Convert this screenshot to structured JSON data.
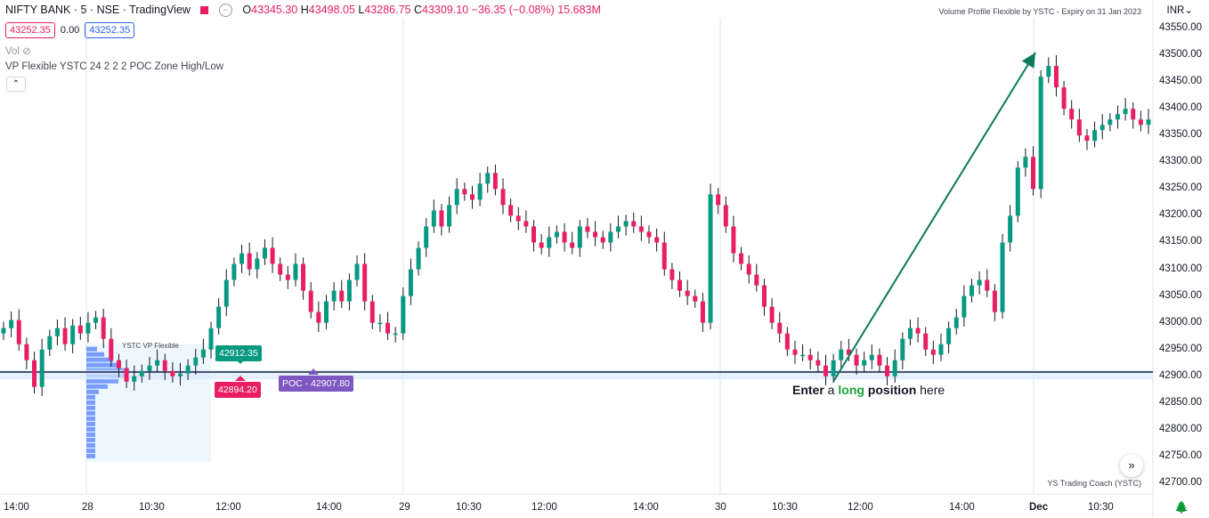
{
  "header": {
    "symbol": "NIFTY BANK · 5 · NSE · TradingView",
    "ohlc": {
      "o_label": "O",
      "o": "43345.30",
      "h_label": "H",
      "h": "43498.05",
      "l_label": "L",
      "l": "43286.75",
      "c_label": "C",
      "c": "43309.10",
      "change": "−36.35 (−0.08%)",
      "vol": "15.683M"
    },
    "sell_price": "43252.35",
    "spread": "0.00",
    "buy_price": "43252.35",
    "vol_label": "Vol",
    "indicator_label": "VP Flexible YSTC 24 2 2 2 POC Zone High/Low",
    "collapse_glyph": "⌃"
  },
  "notes": {
    "top_right": "Volume Profile Flexible by YSTC - Expiry on 31 Jan 2023",
    "bottom_right": "YS Trading Coach (YSTC)"
  },
  "currency": "INR",
  "scroll_glyph": "»",
  "tree_glyph": "🌲",
  "labels": {
    "vp_title": "YSTC VP Flexible",
    "high": "42912.35",
    "low": "42894.20",
    "poc": "POC - 42907.80"
  },
  "annotation": {
    "part1": "Enter",
    "part2": " a ",
    "part3": "long",
    "part4": " position",
    "part5": " here"
  },
  "price_axis": [
    "43550.00",
    "43500.00",
    "43450.00",
    "43400.00",
    "43350.00",
    "43300.00",
    "43250.00",
    "43200.00",
    "43150.00",
    "43100.00",
    "43050.00",
    "43000.00",
    "42950.00",
    "42900.00",
    "42850.00",
    "42800.00",
    "42750.00",
    "42700.00"
  ],
  "time_axis": [
    "14:00",
    "28",
    "10:30",
    "12:00",
    "14:00",
    "29",
    "10:30",
    "12:00",
    "14:00",
    "30",
    "10:30",
    "12:00",
    "14:00",
    "Dec",
    "10:30"
  ],
  "colors": {
    "up": "#089981",
    "down": "#e91e63",
    "accent": "#2962ff",
    "poc": "#7e57c2",
    "arrow": "#0b7a5a"
  },
  "chart_data": {
    "type": "candlestick",
    "y_range": [
      42680,
      43570
    ],
    "horizontal_line": 42908,
    "series_close": [
      42990,
      43005,
      42960,
      42930,
      42880,
      42950,
      42975,
      42990,
      42960,
      42995,
      42980,
      43000,
      43010,
      42970,
      42930,
      42915,
      42890,
      42900,
      42910,
      42920,
      42930,
      42910,
      42900,
      42905,
      42920,
      42935,
      42950,
      42990,
      43030,
      43080,
      43110,
      43130,
      43100,
      43120,
      43140,
      43110,
      43090,
      43080,
      43110,
      43060,
      43020,
      43000,
      43040,
      43060,
      43040,
      43080,
      43110,
      43040,
      43000,
      43000,
      42980,
      42980,
      43050,
      43100,
      43140,
      43180,
      43210,
      43180,
      43220,
      43250,
      43240,
      43230,
      43260,
      43280,
      43250,
      43220,
      43200,
      43190,
      43180,
      43150,
      43140,
      43160,
      43170,
      43150,
      43140,
      43180,
      43170,
      43160,
      43150,
      43170,
      43180,
      43190,
      43180,
      43170,
      43160,
      43150,
      43100,
      43080,
      43060,
      43050,
      43040,
      43000,
      43240,
      43220,
      43180,
      43130,
      43110,
      43090,
      43070,
      43030,
      43000,
      42980,
      42950,
      42940,
      42940,
      42930,
      42920,
      42900,
      42930,
      42950,
      42940,
      42920,
      42930,
      42940,
      42920,
      42900,
      42930,
      42970,
      42990,
      42980,
      42950,
      42940,
      42960,
      42990,
      43010,
      43050,
      43070,
      43080,
      43060,
      43020,
      43150,
      43200,
      43290,
      43310,
      43250,
      43460,
      43480,
      43440,
      43400,
      43380,
      43350,
      43340,
      43360,
      43370,
      43380,
      43390,
      43400,
      43380,
      43370,
      43380
    ]
  }
}
